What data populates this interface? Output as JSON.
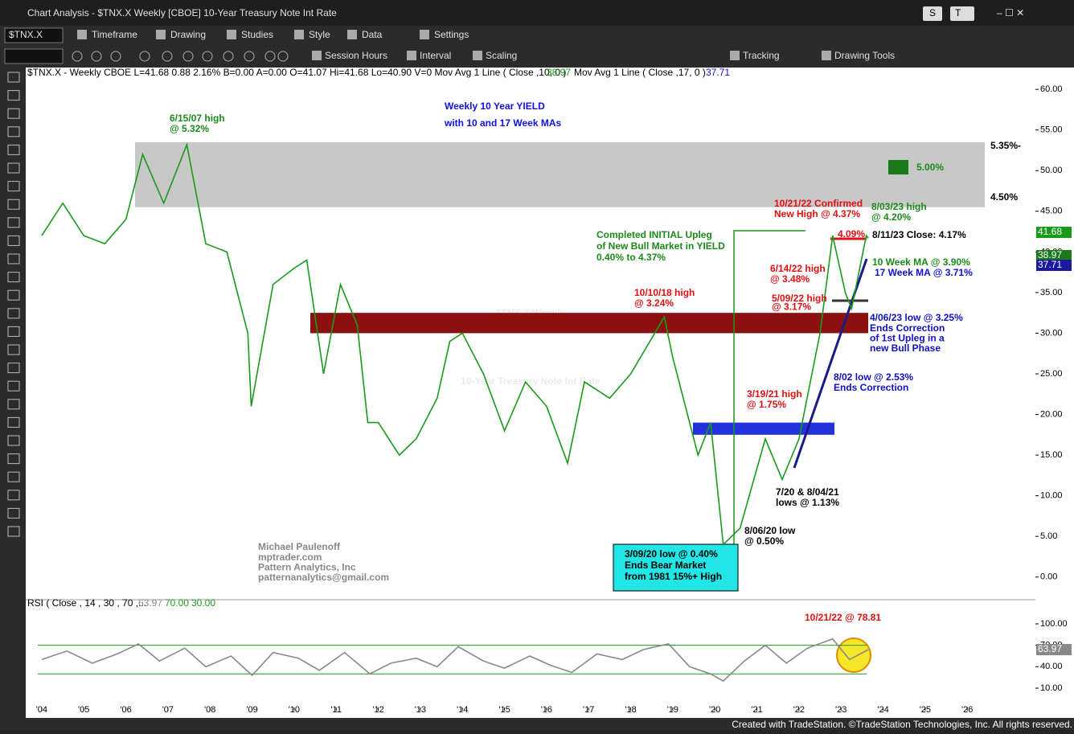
{
  "window": {
    "title": "Chart Analysis - $TNX.X Weekly [CBOE] 10-Year Treasury Note Int Rate",
    "buttons": [
      "S",
      "T"
    ]
  },
  "toolbar": {
    "symbol": "$TNX.X",
    "row1": [
      "Timeframe",
      "Drawing",
      "Studies",
      "Style",
      "Data",
      "Settings"
    ],
    "row2": [
      "Session Hours",
      "Interval",
      "Scaling",
      "Tracking",
      "Drawing Tools"
    ]
  },
  "info": {
    "text": "$TNX.X - Weekly  CBOE  L=41.68  0.88  2.16%  B=0.00  A=0.00  O=41.07  Hi=41.68  Lo=40.90  V=0   Mov Avg 1 Line ( Close ,10,  0 )",
    "ma10": "38.97",
    "ma17_text": "Mov Avg 1 Line ( Close ,17,  0 )",
    "ma17": "37.71"
  },
  "watermark": [
    "$TNX.X,Weekly",
    "10-Year Treasury Note Int Rate"
  ],
  "chart_data": [
    {
      "type": "line",
      "x": [
        2004.0,
        2004.5,
        2005.0,
        2005.5,
        2006.0,
        2006.4,
        2006.9,
        2007.45,
        2007.9,
        2008.4,
        2008.9,
        2008.98,
        2009.5,
        2010.0,
        2010.3,
        2010.7,
        2011.1,
        2011.5,
        2011.75,
        2012.0,
        2012.5,
        2012.9,
        2013.4,
        2013.7,
        2014.0,
        2014.5,
        2015.0,
        2015.5,
        2016.0,
        2016.5,
        2016.9,
        2017.5,
        2018.0,
        2018.8,
        2019.0,
        2019.6,
        2019.9,
        2020.2,
        2020.6,
        2021.2,
        2021.6,
        2022.0,
        2022.5,
        2022.8,
        2023.1,
        2023.25,
        2023.6,
        2023.65
      ],
      "series": [
        {
          "name": "$TNX.X",
          "color": "#1a9a1a",
          "values": [
            42,
            46,
            42,
            41,
            44,
            52,
            46,
            53.2,
            41,
            40,
            30,
            21,
            36,
            38,
            39,
            25,
            36,
            31,
            19,
            19,
            15,
            17,
            22,
            29,
            30,
            25,
            18,
            24,
            21,
            14,
            24,
            22,
            25,
            32,
            27,
            15,
            19,
            4,
            6,
            17,
            12,
            17,
            30,
            42,
            35,
            33,
            42,
            41.68
          ]
        }
      ],
      "xlim": [
        2003.62,
        2027.62
      ],
      "xticks": [
        {
          "value": 2004,
          "label": "'04"
        },
        {
          "value": 2005,
          "label": "'05"
        },
        {
          "value": 2006,
          "label": "'06"
        },
        {
          "value": 2007,
          "label": "'07"
        },
        {
          "value": 2008,
          "label": "'08"
        },
        {
          "value": 2009,
          "label": "'09"
        },
        {
          "value": 2010,
          "label": "'10"
        },
        {
          "value": 2011,
          "label": "'11"
        },
        {
          "value": 2012,
          "label": "'12"
        },
        {
          "value": 2013,
          "label": "'13"
        },
        {
          "value": 2014,
          "label": "'14"
        },
        {
          "value": 2015,
          "label": "'15"
        },
        {
          "value": 2016,
          "label": "'16"
        },
        {
          "value": 2017,
          "label": "'17"
        },
        {
          "value": 2018,
          "label": "'18"
        },
        {
          "value": 2019,
          "label": "'19"
        },
        {
          "value": 2020,
          "label": "'20"
        },
        {
          "value": 2021,
          "label": "'21"
        },
        {
          "value": 2022,
          "label": "'22"
        },
        {
          "value": 2023,
          "label": "'23"
        },
        {
          "value": 2024,
          "label": "'24"
        },
        {
          "value": 2025,
          "label": "'25"
        },
        {
          "value": 2026,
          "label": "'26"
        }
      ],
      "ylim": [
        -2.5,
        61.5
      ],
      "yticks": [
        {
          "value": 0,
          "label": "0.00"
        },
        {
          "value": 5,
          "label": "5.00"
        },
        {
          "value": 10,
          "label": "10.00"
        },
        {
          "value": 15,
          "label": "15.00"
        },
        {
          "value": 20,
          "label": "20.00"
        },
        {
          "value": 25,
          "label": "25.00"
        },
        {
          "value": 30,
          "label": "30.00"
        },
        {
          "value": 35,
          "label": "35.00"
        },
        {
          "value": 40,
          "label": "40.00"
        },
        {
          "value": 45,
          "label": "45.00"
        },
        {
          "value": 50,
          "label": "50.00"
        },
        {
          "value": 55,
          "label": "55.00"
        },
        {
          "value": 60,
          "label": "60.00"
        }
      ],
      "zones": [
        {
          "from": 45.5,
          "to": 53.5,
          "color": "#c8c8c8"
        },
        {
          "from": 30,
          "to": 32.5,
          "color": "#8b1010"
        },
        {
          "from": 17.5,
          "to": 19,
          "color": "#2233dd"
        }
      ],
      "annotations": [
        {
          "lines": [
            "Weekly 10 Year YIELD",
            "with 10 and 17 Week MAs"
          ],
          "color": "#1010e0"
        },
        {
          "lines": [
            "6/15/07 high",
            "@ 5.32%"
          ],
          "color": "#1a8a1a"
        },
        {
          "lines": [
            "5.35%-"
          ],
          "color": "#000000"
        },
        {
          "lines": [
            "4.50%"
          ],
          "color": "#000000"
        },
        {
          "lines": [
            "5.00%"
          ],
          "color": "#1a8a1a"
        },
        {
          "lines": [
            "10/21/22 Confirmed",
            "New High @ 4.37%"
          ],
          "color": "#e01010"
        },
        {
          "lines": [
            "8/03/23 high",
            "@ 4.20%"
          ],
          "color": "#1a8a1a"
        },
        {
          "lines": [
            "4.09%"
          ],
          "color": "#e01010"
        },
        {
          "lines": [
            "8/11/23 Close: 4.17%"
          ],
          "color": "#000000"
        },
        {
          "lines": [
            "Completed INITIAL Upleg",
            "of New Bull Market in YIELD",
            "0.40% to 4.37%"
          ],
          "color": "#1a8a1a"
        },
        {
          "lines": [
            "10 Week MA @ 3.90%"
          ],
          "color": "#1a8a1a"
        },
        {
          "lines": [
            "17 Week MA @ 3.71%"
          ],
          "color": "#1010e0"
        },
        {
          "lines": [
            "6/14/22 high",
            "@ 3.48%"
          ],
          "color": "#e01010"
        },
        {
          "lines": [
            "10/10/18 high",
            "@ 3.24%"
          ],
          "color": "#e01010"
        },
        {
          "lines": [
            "5/09/22 high",
            "@ 3.17%"
          ],
          "color": "#e01010"
        },
        {
          "lines": [
            "4/06/23 low @ 3.25%",
            "Ends Correction",
            "of 1st Upleg in a",
            "new Bull Phase"
          ],
          "color": "#1010c0"
        },
        {
          "lines": [
            "8/02 low @ 2.53%",
            "Ends Correction"
          ],
          "color": "#1010c0"
        },
        {
          "lines": [
            "3/19/21 high",
            "@ 1.75%"
          ],
          "color": "#e01010"
        },
        {
          "lines": [
            "7/20 & 8/04/21",
            "lows @ 1.13%"
          ],
          "color": "#000000"
        },
        {
          "lines": [
            "8/06/20 low",
            "@ 0.50%"
          ],
          "color": "#000000"
        },
        {
          "lines": [
            "3/09/20 low @ 0.40%",
            "Ends Bear Market",
            "from 1981 15%+ High"
          ],
          "color": "#000000"
        },
        {
          "lines": [
            "Michael Paulenoff",
            "mptrader.com",
            "Pattern Analytics, Inc",
            "patternanalytics@gmail.com"
          ],
          "color": "#888888"
        }
      ],
      "last_labels": [
        "41.68",
        "38.97",
        "37.71"
      ]
    },
    {
      "type": "line",
      "title": "RSI ( Close , 14 , 30 , 70 ,...",
      "last": "63.97",
      "overbought": "70.00",
      "oversold": "30.00",
      "x": [
        2004.0,
        2004.6,
        2005.2,
        2005.8,
        2006.3,
        2006.8,
        2007.4,
        2007.9,
        2008.5,
        2009.0,
        2009.5,
        2010.1,
        2010.6,
        2011.2,
        2011.8,
        2012.3,
        2012.9,
        2013.4,
        2013.9,
        2014.5,
        2015.0,
        2015.6,
        2016.1,
        2016.6,
        2017.2,
        2017.8,
        2018.3,
        2018.9,
        2019.4,
        2019.9,
        2020.2,
        2020.7,
        2021.2,
        2021.7,
        2022.2,
        2022.8,
        2023.2,
        2023.65
      ],
      "series": [
        {
          "name": "RSI",
          "color": "#888888",
          "values": [
            50,
            62,
            45,
            58,
            72,
            48,
            66,
            40,
            55,
            28,
            60,
            52,
            35,
            60,
            30,
            45,
            52,
            40,
            68,
            48,
            38,
            55,
            42,
            32,
            58,
            50,
            64,
            72,
            40,
            30,
            20,
            48,
            70,
            45,
            66,
            79,
            50,
            63.97
          ]
        }
      ],
      "xlim": [
        2003.62,
        2027.62
      ],
      "ylim": [
        -17,
        118
      ],
      "yticks": [
        {
          "value": 10,
          "label": "10.00"
        },
        {
          "value": 40,
          "label": "40.00"
        },
        {
          "value": 70,
          "label": "70.00"
        },
        {
          "value": 100,
          "label": "100.00"
        }
      ],
      "levels": [
        70,
        30
      ],
      "annotation": "10/21/22 @ 78.81"
    }
  ],
  "footer": "Created with TradeStation. ©TradeStation Technologies, Inc. All rights reserved."
}
